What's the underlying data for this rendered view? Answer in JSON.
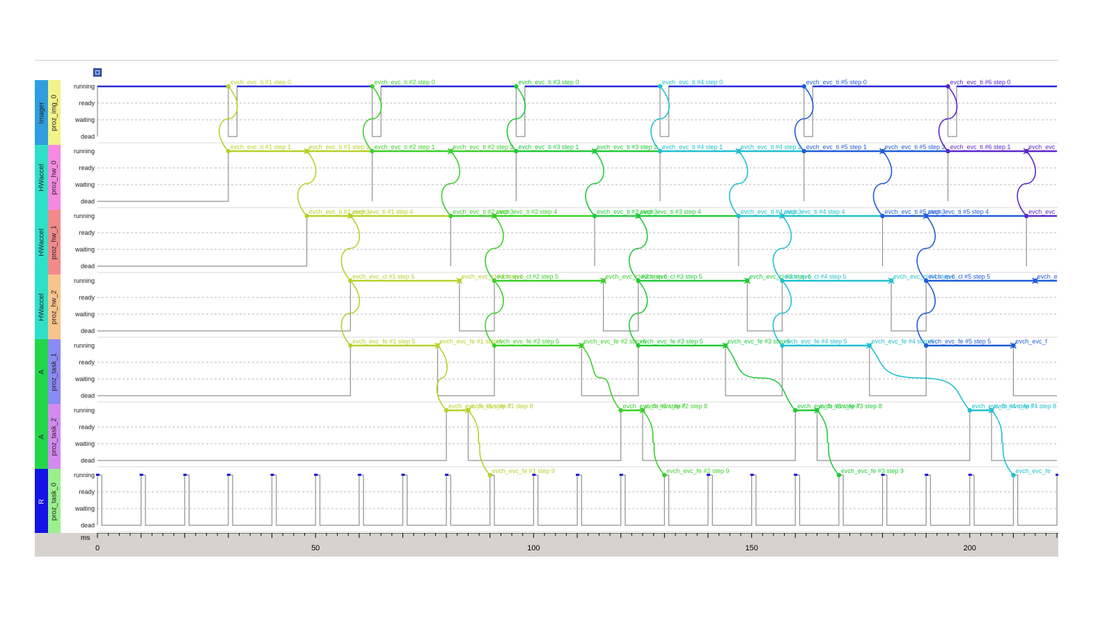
{
  "window": {
    "icon": "app-icon"
  },
  "states": [
    "running",
    "ready",
    "waiting",
    "dead"
  ],
  "groups": [
    {
      "id": "imager",
      "label": "Imager",
      "color": "#2f9de0",
      "lanes": [
        0
      ]
    },
    {
      "id": "hw0",
      "label": "HWaccel",
      "color": "#2fe0c8",
      "lanes": [
        1
      ]
    },
    {
      "id": "hw1",
      "label": "HWaccel",
      "color": "#2fe0c8",
      "lanes": [
        2
      ]
    },
    {
      "id": "hw2",
      "label": "HWaccel",
      "color": "#2fe0c8",
      "lanes": [
        3
      ]
    },
    {
      "id": "a1",
      "label": "A",
      "color": "#22d64a",
      "lanes": [
        4
      ]
    },
    {
      "id": "a2",
      "label": "A",
      "color": "#22d64a",
      "lanes": [
        5
      ]
    },
    {
      "id": "r",
      "label": "R",
      "color": "#1414e6",
      "lanes": [
        6
      ]
    }
  ],
  "lanes": [
    {
      "name": "proz_img_0",
      "color": "#f3f38a"
    },
    {
      "name": "proz_hw_0",
      "color": "#f58ae0"
    },
    {
      "name": "proz_hw_1",
      "color": "#f28a8a"
    },
    {
      "name": "proz_hw_2",
      "color": "#f8c48c"
    },
    {
      "name": "proz_task_1",
      "color": "#8a8af5"
    },
    {
      "name": "proz_task_2",
      "color": "#d28af0"
    },
    {
      "name": "proz_task_0",
      "color": "#9cf08c"
    }
  ],
  "axis": {
    "unit": "ms",
    "min": 0,
    "max": 220,
    "ticks": [
      "0",
      "50",
      "100",
      "150",
      "200"
    ],
    "tick_values": [
      0,
      50,
      100,
      150,
      200
    ],
    "minor_step": 2.5
  },
  "instance_colors": [
    "#b7d12a",
    "#3ccf2a",
    "#22c93a",
    "#20c0d0",
    "#1f5cd6",
    "#5a28c8"
  ],
  "events": {
    "img": [
      {
        "t": 30,
        "inst": 0,
        "label": "evch_evc_ti #1 step 0"
      },
      {
        "t": 63,
        "inst": 1,
        "label": "evch_evc_ti #2 step 0"
      },
      {
        "t": 96,
        "inst": 2,
        "label": "evch_evc_ti #3 step 0"
      },
      {
        "t": 129,
        "inst": 3,
        "label": "evch_evc_ti #4 step 0"
      },
      {
        "t": 162,
        "inst": 4,
        "label": "evch_evc_ti #5 step 0"
      },
      {
        "t": 195,
        "inst": 5,
        "label": "evch_evc_ti #6 step 0"
      }
    ],
    "hw0": [
      {
        "t": 30,
        "inst": 0,
        "label": "evch_evc_ti #1 step 1"
      },
      {
        "t": 48,
        "inst": 0,
        "label": "evch_evc_ti #1 step 2"
      },
      {
        "t": 63,
        "inst": 1,
        "label": "evch_evc_ti #2 step 1"
      },
      {
        "t": 81,
        "inst": 1,
        "label": "evch_evc_ti #2 step 2"
      },
      {
        "t": 96,
        "inst": 2,
        "label": "evch_evc_ti #3 step 1"
      },
      {
        "t": 114,
        "inst": 2,
        "label": "evch_evc_ti #3 step 2"
      },
      {
        "t": 129,
        "inst": 3,
        "label": "evch_evc_ti #4 step 1"
      },
      {
        "t": 147,
        "inst": 3,
        "label": "evch_evc_ti #4 step 2"
      },
      {
        "t": 162,
        "inst": 4,
        "label": "evch_evc_ti #5 step 1"
      },
      {
        "t": 180,
        "inst": 4,
        "label": "evch_evc_ti #5 step 2"
      },
      {
        "t": 195,
        "inst": 5,
        "label": "evch_evc_ti #6 step 1"
      },
      {
        "t": 213,
        "inst": 5,
        "label": "evch_evc"
      }
    ],
    "hw1": [
      {
        "t": 48,
        "inst": 0,
        "label": "evch_evc_ti #1 step 3"
      },
      {
        "t": 58,
        "inst": 0,
        "label": "evch_evc_ti #1 step 4"
      },
      {
        "t": 81,
        "inst": 1,
        "label": "evch_evc_ti #2 step 3"
      },
      {
        "t": 91,
        "inst": 1,
        "label": "evch_evc_ti #2 step 4"
      },
      {
        "t": 114,
        "inst": 2,
        "label": "evch_evc_ti #3 step 3"
      },
      {
        "t": 124,
        "inst": 2,
        "label": "evch_evc_ti #3 step 4"
      },
      {
        "t": 147,
        "inst": 3,
        "label": "evch_evc_ti #4 step 3"
      },
      {
        "t": 157,
        "inst": 3,
        "label": "evch_evc_ti #4 step 4"
      },
      {
        "t": 180,
        "inst": 4,
        "label": "evch_evc_ti #5 step 3"
      },
      {
        "t": 190,
        "inst": 4,
        "label": "evch_evc_ti #5 step 4"
      },
      {
        "t": 213,
        "inst": 5,
        "label": "evch_evc"
      }
    ],
    "hw2": [
      {
        "t": 58,
        "inst": 0,
        "label": "evch_evc_cl #1 step 5"
      },
      {
        "t": 83,
        "inst": 0,
        "label": "evch_evc_cl #1 step 6"
      },
      {
        "t": 91,
        "inst": 1,
        "label": "evch_evc_cl #2 step 5"
      },
      {
        "t": 116,
        "inst": 1,
        "label": "evch_evc_cl #2 step 6"
      },
      {
        "t": 124,
        "inst": 2,
        "label": "evch_evc_cl #3 step 5"
      },
      {
        "t": 149,
        "inst": 2,
        "label": "evch_evc_cl #3 step 6"
      },
      {
        "t": 157,
        "inst": 3,
        "label": "evch_evc_cl #4 step 5"
      },
      {
        "t": 182,
        "inst": 3,
        "label": "evch_evc_cl #4 step 6"
      },
      {
        "t": 190,
        "inst": 4,
        "label": "evch_evc_cl #5 step 5"
      },
      {
        "t": 215,
        "inst": 4,
        "label": "evch_e"
      }
    ],
    "t1": [
      {
        "t": 58,
        "inst": 0,
        "label": "evch_evc_fe #1 step 5"
      },
      {
        "t": 78,
        "inst": 0,
        "label": "evch_evc_fe #1 step 6"
      },
      {
        "t": 91,
        "inst": 1,
        "label": "evch_evc_fe #2 step 5"
      },
      {
        "t": 111,
        "inst": 1,
        "label": "evch_evc_fe #2 step 6"
      },
      {
        "t": 124,
        "inst": 2,
        "label": "evch_evc_fe #3 step 5"
      },
      {
        "t": 144,
        "inst": 2,
        "label": "evch_evc_fe #3 step 6"
      },
      {
        "t": 157,
        "inst": 3,
        "label": "evch_evc_fe #4 step 5"
      },
      {
        "t": 177,
        "inst": 3,
        "label": "evch_evc_fe #4 step 6"
      },
      {
        "t": 190,
        "inst": 4,
        "label": "evch_evc_fe #5 step 5"
      },
      {
        "t": 210,
        "inst": 4,
        "label": "evch_evc_f"
      }
    ],
    "t2": [
      {
        "t": 80,
        "inst": 0,
        "label": "evch_evc_fe #1 step 7"
      },
      {
        "t": 85,
        "inst": 0,
        "label": "evch_evc_fe #1 step 8"
      },
      {
        "t": 120,
        "inst": 1,
        "label": "evch_evc_fe #2 step 7"
      },
      {
        "t": 125,
        "inst": 1,
        "label": "evch_evc_fe #2 step 8"
      },
      {
        "t": 160,
        "inst": 2,
        "label": "evch_evc_fe #3 step 7"
      },
      {
        "t": 165,
        "inst": 2,
        "label": "evch_evc_fe #3 step 8"
      },
      {
        "t": 200,
        "inst": 3,
        "label": "evch_evc_fe #4 step 7"
      },
      {
        "t": 205,
        "inst": 3,
        "label": "evch_evc_fe #4 step 8"
      }
    ],
    "t0": [
      {
        "t": 90,
        "inst": 0,
        "label": "evch_evc_fe #1 step 9"
      },
      {
        "t": 130,
        "inst": 1,
        "label": "evch_evc_fe #2 step 9"
      },
      {
        "t": 170,
        "inst": 2,
        "label": "evch_evc_fe #3 step 9"
      },
      {
        "t": 210,
        "inst": 3,
        "label": "evch_evc_fe"
      }
    ]
  },
  "activity": {
    "img": [
      [
        0,
        30
      ],
      [
        32,
        63
      ],
      [
        65,
        96
      ],
      [
        98,
        129
      ],
      [
        131,
        162
      ],
      [
        164,
        195
      ],
      [
        197,
        220
      ]
    ],
    "hw0": [
      [
        30,
        63
      ],
      [
        63,
        96
      ],
      [
        96,
        129
      ],
      [
        129,
        162
      ],
      [
        162,
        195
      ],
      [
        195,
        220
      ]
    ],
    "hw1": [
      [
        48,
        81
      ],
      [
        81,
        114
      ],
      [
        114,
        147
      ],
      [
        147,
        180
      ],
      [
        180,
        213
      ],
      [
        213,
        220
      ]
    ],
    "hw2": [
      [
        58,
        83
      ],
      [
        91,
        116
      ],
      [
        124,
        149
      ],
      [
        157,
        182
      ],
      [
        190,
        220
      ]
    ],
    "t1": [
      [
        58,
        78
      ],
      [
        91,
        111
      ],
      [
        124,
        144
      ],
      [
        157,
        177
      ],
      [
        190,
        210
      ]
    ],
    "t2": [
      [
        80,
        85
      ],
      [
        120,
        125
      ],
      [
        160,
        165
      ],
      [
        200,
        205
      ]
    ],
    "t0_period": 10,
    "t0_pulse": 1
  },
  "chains": [
    {
      "inst": 0,
      "hops": [
        [
          "img",
          30
        ],
        [
          "hw0",
          30
        ],
        [
          "hw0",
          48
        ],
        [
          "hw1",
          48
        ],
        [
          "hw1",
          58
        ],
        [
          "hw2",
          58
        ],
        [
          "t1",
          58
        ],
        [
          "t1",
          78
        ],
        [
          "t2",
          80
        ],
        [
          "t2",
          85
        ],
        [
          "t0",
          90
        ]
      ]
    },
    {
      "inst": 1,
      "hops": [
        [
          "img",
          63
        ],
        [
          "hw0",
          63
        ],
        [
          "hw0",
          81
        ],
        [
          "hw1",
          81
        ],
        [
          "hw1",
          91
        ],
        [
          "hw2",
          91
        ],
        [
          "t1",
          91
        ],
        [
          "t1",
          111
        ],
        [
          "t2",
          120
        ],
        [
          "t2",
          125
        ],
        [
          "t0",
          130
        ]
      ]
    },
    {
      "inst": 2,
      "hops": [
        [
          "img",
          96
        ],
        [
          "hw0",
          96
        ],
        [
          "hw0",
          114
        ],
        [
          "hw1",
          114
        ],
        [
          "hw1",
          124
        ],
        [
          "hw2",
          124
        ],
        [
          "t1",
          124
        ],
        [
          "t1",
          144
        ],
        [
          "t2",
          160
        ],
        [
          "t2",
          165
        ],
        [
          "t0",
          170
        ]
      ]
    },
    {
      "inst": 3,
      "hops": [
        [
          "img",
          129
        ],
        [
          "hw0",
          129
        ],
        [
          "hw0",
          147
        ],
        [
          "hw1",
          147
        ],
        [
          "hw1",
          157
        ],
        [
          "hw2",
          157
        ],
        [
          "t1",
          157
        ],
        [
          "t1",
          177
        ],
        [
          "t2",
          200
        ],
        [
          "t2",
          205
        ],
        [
          "t0",
          210
        ]
      ]
    },
    {
      "inst": 4,
      "hops": [
        [
          "img",
          162
        ],
        [
          "hw0",
          162
        ],
        [
          "hw0",
          180
        ],
        [
          "hw1",
          180
        ],
        [
          "hw1",
          190
        ],
        [
          "hw2",
          190
        ],
        [
          "t1",
          190
        ],
        [
          "t1",
          210
        ]
      ]
    },
    {
      "inst": 5,
      "hops": [
        [
          "img",
          195
        ],
        [
          "hw0",
          195
        ],
        [
          "hw0",
          213
        ],
        [
          "hw1",
          213
        ]
      ]
    }
  ]
}
